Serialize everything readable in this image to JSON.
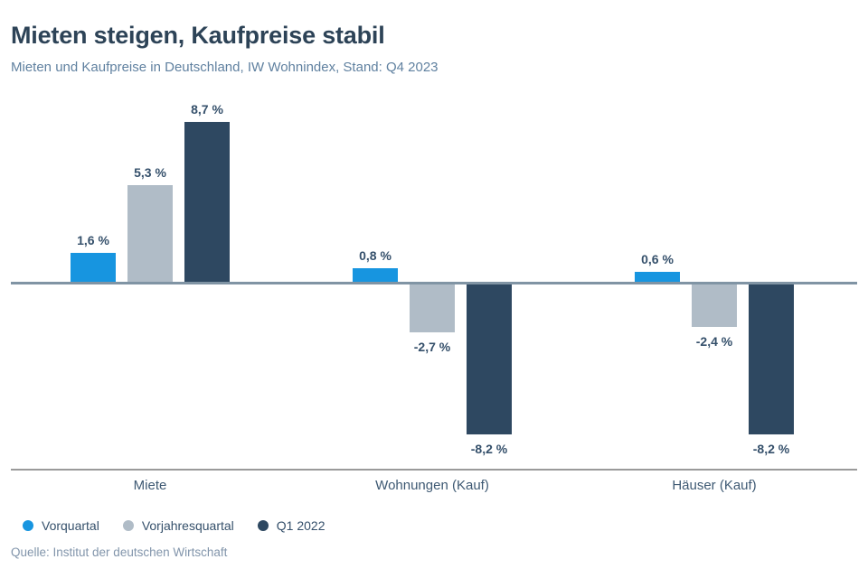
{
  "header": {
    "title": "Mieten steigen, Kaufpreise stabil",
    "subtitle": "Mieten und Kaufpreise in Deutschland, IW Wohnindex, Stand: Q4 2023"
  },
  "chart_data": {
    "type": "bar",
    "categories": [
      "Miete",
      "Wohnungen (Kauf)",
      "Häuser (Kauf)"
    ],
    "series": [
      {
        "name": "Vorquartal",
        "color": "#1795e0",
        "values": [
          1.6,
          0.8,
          0.6
        ],
        "value_labels": [
          "1,6 %",
          "0,8 %",
          "0,6 %"
        ]
      },
      {
        "name": "Vorjahresquartal",
        "color": "#b0bcc7",
        "values": [
          5.3,
          -2.7,
          -2.4
        ],
        "value_labels": [
          "5,3 %",
          "-2,7 %",
          "-2,4 %"
        ]
      },
      {
        "name": "Q1 2022",
        "color": "#2e4861",
        "values": [
          8.7,
          -8.2,
          -8.2
        ],
        "value_labels": [
          "8,7 %",
          "-8,2 %",
          "-8,2 %"
        ]
      }
    ],
    "unit": "%",
    "ylim": [
      -8.7,
      9.4
    ],
    "baseline": 0,
    "grid": false,
    "legend_position": "bottom-left"
  },
  "colors": {
    "title": "#2d4357",
    "subtitle": "#6081a0",
    "value_label": "#35506b",
    "category_label": "#3e5973",
    "zero_line": "#8094a4",
    "separator_line": "#9a9a9a",
    "source": "#8295ab",
    "background": "#ffffff"
  },
  "footer": {
    "source": "Quelle: Institut der deutschen Wirtschaft"
  }
}
